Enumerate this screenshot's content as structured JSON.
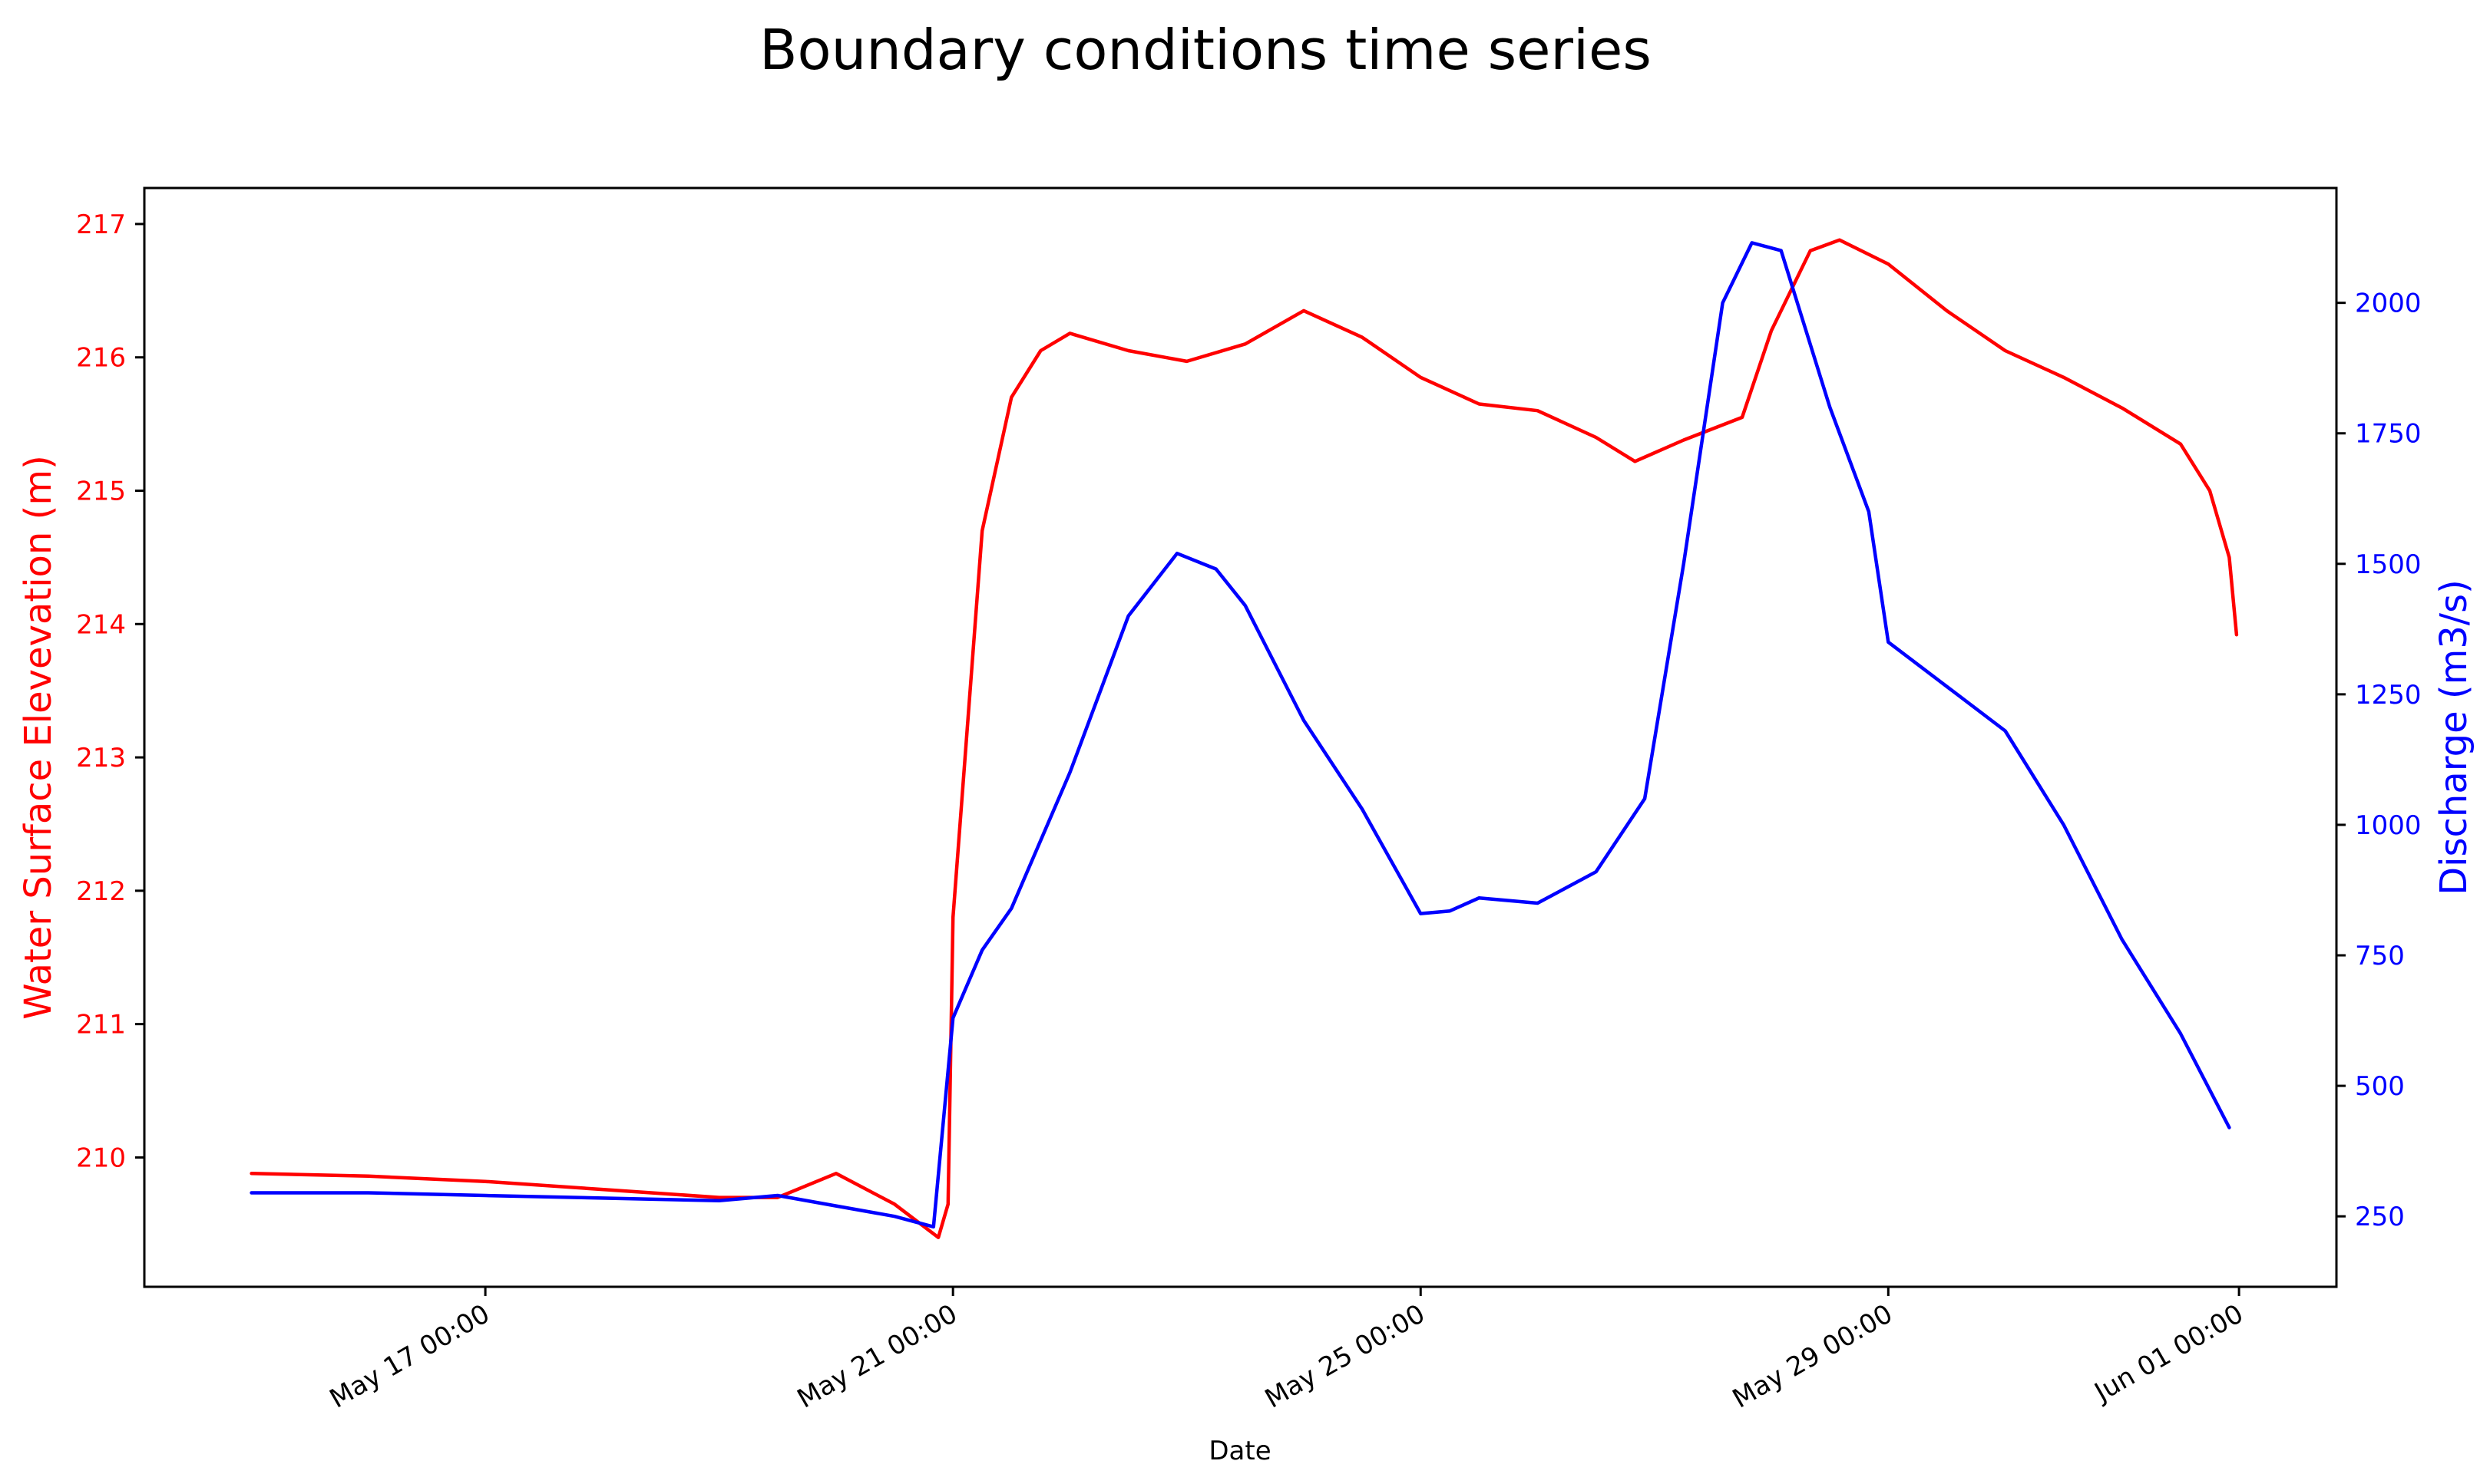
{
  "chart_data": {
    "type": "line",
    "title": "Boundary conditions time series",
    "xlabel": "Date",
    "ylabel_left": "Water Surface Elevevation (m)",
    "ylabel_right": "Discharge (m3/s)",
    "x_ticks": [
      {
        "date": "2024-05-17T00:00",
        "label": "May 17 00:00"
      },
      {
        "date": "2024-05-21T00:00",
        "label": "May 21 00:00"
      },
      {
        "date": "2024-05-25T00:00",
        "label": "May 25 00:00"
      },
      {
        "date": "2024-05-29T00:00",
        "label": "May 29 00:00"
      },
      {
        "date": "2024-06-01T00:00",
        "label": "Jun 01 00:00"
      }
    ],
    "xlim": [
      "2024-05-14T02:00",
      "2024-06-01T20:00"
    ],
    "y_left": {
      "ylim": [
        209.03,
        217.27
      ],
      "ticks": [
        210,
        211,
        212,
        213,
        214,
        215,
        216,
        217
      ],
      "color": "#ff0000"
    },
    "y_right": {
      "ylim": [
        115,
        2220
      ],
      "ticks": [
        250,
        500,
        750,
        1000,
        1250,
        1500,
        1750,
        2000
      ],
      "color": "#0000ff"
    },
    "grid": false,
    "series": [
      {
        "axis": "left",
        "color": "#ff0000",
        "points": [
          [
            "2024-05-15T00:00",
            209.88
          ],
          [
            "2024-05-16T00:00",
            209.86
          ],
          [
            "2024-05-17T00:00",
            209.82
          ],
          [
            "2024-05-18T00:00",
            209.76
          ],
          [
            "2024-05-19T00:00",
            209.7
          ],
          [
            "2024-05-19T12:00",
            209.7
          ],
          [
            "2024-05-20T00:00",
            209.88
          ],
          [
            "2024-05-20T12:00",
            209.65
          ],
          [
            "2024-05-20T21:00",
            209.4
          ],
          [
            "2024-05-20T23:00",
            209.65
          ],
          [
            "2024-05-21T00:00",
            211.8
          ],
          [
            "2024-05-21T06:00",
            214.7
          ],
          [
            "2024-05-21T12:00",
            215.7
          ],
          [
            "2024-05-21T18:00",
            216.05
          ],
          [
            "2024-05-22T00:00",
            216.18
          ],
          [
            "2024-05-22T12:00",
            216.05
          ],
          [
            "2024-05-23T00:00",
            215.97
          ],
          [
            "2024-05-23T12:00",
            216.1
          ],
          [
            "2024-05-24T00:00",
            216.35
          ],
          [
            "2024-05-24T12:00",
            216.15
          ],
          [
            "2024-05-25T00:00",
            215.85
          ],
          [
            "2024-05-25T12:00",
            215.65
          ],
          [
            "2024-05-26T00:00",
            215.6
          ],
          [
            "2024-05-26T12:00",
            215.4
          ],
          [
            "2024-05-26T20:00",
            215.22
          ],
          [
            "2024-05-27T06:00",
            215.38
          ],
          [
            "2024-05-27T18:00",
            215.55
          ],
          [
            "2024-05-28T00:00",
            216.2
          ],
          [
            "2024-05-28T08:00",
            216.8
          ],
          [
            "2024-05-28T14:00",
            216.88
          ],
          [
            "2024-05-29T00:00",
            216.7
          ],
          [
            "2024-05-29T12:00",
            216.35
          ],
          [
            "2024-05-30T00:00",
            216.05
          ],
          [
            "2024-05-30T12:00",
            215.85
          ],
          [
            "2024-05-31T00:00",
            215.62
          ],
          [
            "2024-05-31T12:00",
            215.35
          ],
          [
            "2024-05-31T18:00",
            215.0
          ],
          [
            "2024-05-31T22:00",
            214.5
          ],
          [
            "2024-05-31T23:30",
            213.92
          ]
        ]
      },
      {
        "axis": "right",
        "color": "#0000ff",
        "points": [
          [
            "2024-05-15T00:00",
            295
          ],
          [
            "2024-05-16T00:00",
            295
          ],
          [
            "2024-05-17T00:00",
            290
          ],
          [
            "2024-05-18T00:00",
            285
          ],
          [
            "2024-05-19T00:00",
            280
          ],
          [
            "2024-05-19T12:00",
            290
          ],
          [
            "2024-05-20T00:00",
            270
          ],
          [
            "2024-05-20T12:00",
            250
          ],
          [
            "2024-05-20T20:00",
            230
          ],
          [
            "2024-05-21T00:00",
            630
          ],
          [
            "2024-05-21T06:00",
            760
          ],
          [
            "2024-05-21T12:00",
            840
          ],
          [
            "2024-05-22T00:00",
            1100
          ],
          [
            "2024-05-22T12:00",
            1400
          ],
          [
            "2024-05-22T22:00",
            1520
          ],
          [
            "2024-05-23T06:00",
            1490
          ],
          [
            "2024-05-23T12:00",
            1420
          ],
          [
            "2024-05-24T00:00",
            1200
          ],
          [
            "2024-05-24T12:00",
            1030
          ],
          [
            "2024-05-25T00:00",
            830
          ],
          [
            "2024-05-25T06:00",
            835
          ],
          [
            "2024-05-25T12:00",
            860
          ],
          [
            "2024-05-26T00:00",
            850
          ],
          [
            "2024-05-26T12:00",
            910
          ],
          [
            "2024-05-26T22:00",
            1050
          ],
          [
            "2024-05-27T06:00",
            1500
          ],
          [
            "2024-05-27T14:00",
            2000
          ],
          [
            "2024-05-27T20:00",
            2115
          ],
          [
            "2024-05-28T02:00",
            2100
          ],
          [
            "2024-05-28T12:00",
            1800
          ],
          [
            "2024-05-28T20:00",
            1600
          ],
          [
            "2024-05-29T00:00",
            1350
          ],
          [
            "2024-05-30T00:00",
            1180
          ],
          [
            "2024-05-30T12:00",
            1000
          ],
          [
            "2024-05-31T00:00",
            780
          ],
          [
            "2024-05-31T12:00",
            600
          ],
          [
            "2024-05-31T22:00",
            420
          ]
        ]
      }
    ]
  }
}
